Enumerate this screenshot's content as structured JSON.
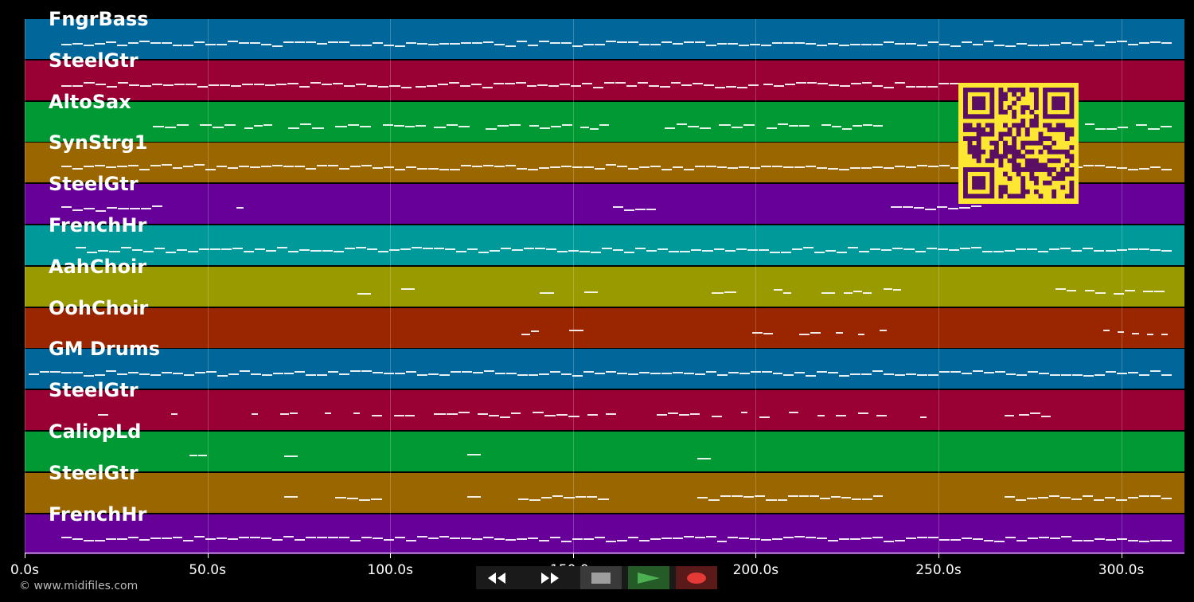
{
  "tracks": [
    {
      "name": "FngrBass",
      "color": "#016699",
      "notes": [
        [
          10,
          314
        ]
      ]
    },
    {
      "name": "SteelGtr",
      "color": "#990033",
      "notes": [
        [
          10,
          106
        ],
        [
          107,
          201
        ],
        [
          202,
          262
        ]
      ]
    },
    {
      "name": "AltoSax",
      "color": "#009933",
      "notes": [
        [
          35,
          45
        ],
        [
          48,
          58
        ],
        [
          60,
          68
        ],
        [
          72,
          82
        ],
        [
          85,
          95
        ],
        [
          98,
          110
        ],
        [
          112,
          122
        ],
        [
          126,
          136
        ],
        [
          138,
          150
        ],
        [
          152,
          160
        ],
        [
          175,
          188
        ],
        [
          190,
          200
        ],
        [
          203,
          215
        ],
        [
          218,
          235
        ],
        [
          290,
          302
        ],
        [
          304,
          314
        ]
      ]
    },
    {
      "name": "SynStrg1",
      "color": "#996600",
      "notes": [
        [
          10,
          314
        ]
      ]
    },
    {
      "name": "SteelGtr",
      "color": "#660099",
      "notes": [
        [
          10,
          38
        ],
        [
          58,
          60
        ],
        [
          161,
          173
        ],
        [
          237,
          262
        ]
      ]
    },
    {
      "name": "FrenchHr",
      "color": "#009999",
      "notes": [
        [
          14,
          314
        ]
      ]
    },
    {
      "name": "AahChoir",
      "color": "#999900",
      "notes": [
        [
          91,
          95
        ],
        [
          103,
          107
        ],
        [
          141,
          145
        ],
        [
          153,
          157
        ],
        [
          188,
          195
        ],
        [
          205,
          210
        ],
        [
          218,
          222
        ],
        [
          224,
          232
        ],
        [
          235,
          240
        ],
        [
          282,
          288
        ],
        [
          290,
          296
        ],
        [
          298,
          304
        ],
        [
          306,
          312
        ]
      ]
    },
    {
      "name": "OohChoir",
      "color": "#992600",
      "notes": [
        [
          136,
          141
        ],
        [
          149,
          153
        ],
        [
          199,
          205
        ],
        [
          212,
          218
        ],
        [
          222,
          224
        ],
        [
          228,
          230
        ],
        [
          234,
          236
        ],
        [
          295,
          297
        ],
        [
          299,
          301
        ],
        [
          303,
          305
        ],
        [
          307,
          309
        ],
        [
          311,
          313
        ]
      ]
    },
    {
      "name": "GM Drums",
      "color": "#016699",
      "notes": [
        [
          1,
          314
        ]
      ]
    },
    {
      "name": "SteelGtr",
      "color": "#990033",
      "notes": [
        [
          20,
          23
        ],
        [
          40,
          42
        ],
        [
          62,
          64
        ],
        [
          70,
          75
        ],
        [
          82,
          84
        ],
        [
          90,
          92
        ],
        [
          95,
          98
        ],
        [
          101,
          107
        ],
        [
          112,
          122
        ],
        [
          124,
          136
        ],
        [
          139,
          152
        ],
        [
          154,
          157
        ],
        [
          159,
          162
        ],
        [
          173,
          185
        ],
        [
          188,
          191
        ],
        [
          196,
          198
        ],
        [
          201,
          204
        ],
        [
          209,
          212
        ],
        [
          217,
          219
        ],
        [
          222,
          225
        ],
        [
          228,
          231
        ],
        [
          233,
          236
        ],
        [
          245,
          247
        ],
        [
          268,
          271
        ],
        [
          272,
          281
        ]
      ]
    },
    {
      "name": "CaliopLd",
      "color": "#009933",
      "notes": [
        [
          45,
          50
        ],
        [
          71,
          75
        ],
        [
          121,
          125
        ],
        [
          184,
          188
        ]
      ]
    },
    {
      "name": "SteelGtr",
      "color": "#996600",
      "notes": [
        [
          71,
          75
        ],
        [
          85,
          98
        ],
        [
          121,
          125
        ],
        [
          135,
          160
        ],
        [
          184,
          206
        ],
        [
          206,
          235
        ],
        [
          268,
          314
        ]
      ]
    },
    {
      "name": "FrenchHr",
      "color": "#660099",
      "notes": [
        [
          10,
          314
        ]
      ]
    }
  ],
  "axis": {
    "ticks": [
      {
        "value": 0,
        "label": "0.0s"
      },
      {
        "value": 50,
        "label": "50.0s"
      },
      {
        "value": 100,
        "label": "100.0s"
      },
      {
        "value": 150,
        "label": "150.0s"
      },
      {
        "value": 200,
        "label": "200.0s"
      },
      {
        "value": 250,
        "label": "250.0s"
      },
      {
        "value": 300,
        "label": "300.0s"
      }
    ],
    "max": 317.3
  },
  "credit": "© www.midifiles.com",
  "transport": {
    "colors": {
      "play": "#4caf50",
      "record": "#e53935",
      "stop": "#9e9e9e"
    }
  },
  "qr": {
    "fg": "#5a0f62",
    "bg": "#fde733"
  }
}
